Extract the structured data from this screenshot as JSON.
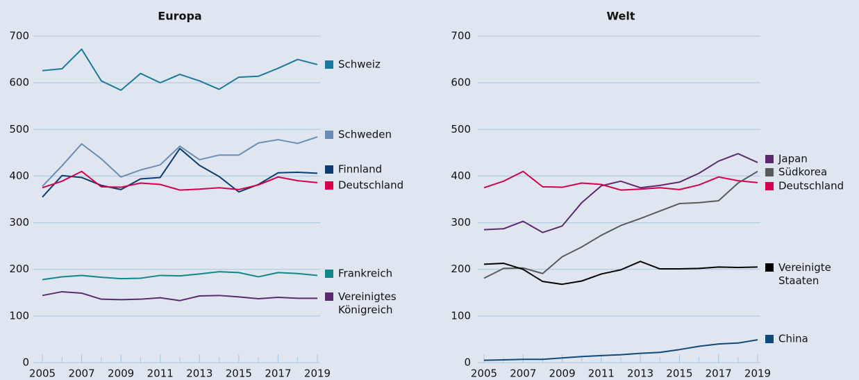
{
  "chart_data": [
    {
      "type": "line",
      "title": "Europa",
      "x": [
        2005,
        2006,
        2007,
        2008,
        2009,
        2010,
        2011,
        2012,
        2013,
        2014,
        2015,
        2016,
        2017,
        2018,
        2019
      ],
      "xlim": [
        2005,
        2019
      ],
      "xticks": [
        2005,
        2007,
        2009,
        2011,
        2013,
        2015,
        2017,
        2019
      ],
      "ylim": [
        0,
        700
      ],
      "yticks": [
        0,
        100,
        200,
        300,
        400,
        500,
        600,
        700
      ],
      "grid": true,
      "series": [
        {
          "name": "Schweiz",
          "color": "#1a7a9e",
          "values": [
            626,
            630,
            672,
            604,
            584,
            620,
            600,
            618,
            604,
            586,
            612,
            614,
            631,
            650,
            639
          ]
        },
        {
          "name": "Schweden",
          "color": "#6a8db5",
          "values": [
            378,
            422,
            469,
            437,
            398,
            413,
            424,
            464,
            435,
            445,
            445,
            471,
            478,
            470,
            484
          ]
        },
        {
          "name": "Finnland",
          "color": "#0c3d6e",
          "values": [
            355,
            401,
            397,
            380,
            371,
            394,
            397,
            459,
            423,
            399,
            366,
            382,
            407,
            408,
            406
          ]
        },
        {
          "name": "Deutschland",
          "color": "#d4004c",
          "values": [
            375,
            389,
            410,
            377,
            376,
            385,
            382,
            370,
            372,
            375,
            371,
            381,
            398,
            390,
            386
          ]
        },
        {
          "name": "Frankreich",
          "color": "#12888a",
          "values": [
            178,
            184,
            187,
            183,
            180,
            181,
            187,
            186,
            190,
            195,
            193,
            184,
            193,
            191,
            187
          ]
        },
        {
          "name": "Vereinigtes Königreich",
          "color": "#5a2a6e",
          "values": [
            144,
            152,
            149,
            136,
            135,
            136,
            139,
            133,
            143,
            144,
            141,
            137,
            140,
            138,
            138
          ]
        }
      ]
    },
    {
      "type": "line",
      "title": "Welt",
      "x": [
        2005,
        2006,
        2007,
        2008,
        2009,
        2010,
        2011,
        2012,
        2013,
        2014,
        2015,
        2016,
        2017,
        2018,
        2019
      ],
      "xlim": [
        2005,
        2019
      ],
      "xticks": [
        2005,
        2007,
        2009,
        2011,
        2013,
        2015,
        2017,
        2019
      ],
      "ylim": [
        0,
        700
      ],
      "yticks": [
        0,
        100,
        200,
        300,
        400,
        500,
        600,
        700
      ],
      "grid": true,
      "series": [
        {
          "name": "Japan",
          "color": "#5b2a6e",
          "values": [
            285,
            287,
            303,
            279,
            293,
            343,
            379,
            389,
            375,
            380,
            387,
            406,
            432,
            448,
            429
          ]
        },
        {
          "name": "Südkorea",
          "color": "#5a5a5a",
          "values": [
            181,
            202,
            203,
            191,
            227,
            248,
            273,
            294,
            309,
            325,
            341,
            343,
            347,
            385,
            410
          ]
        },
        {
          "name": "Deutschland",
          "color": "#d4004c",
          "values": [
            375,
            389,
            410,
            377,
            376,
            385,
            382,
            370,
            372,
            375,
            371,
            381,
            398,
            390,
            386
          ]
        },
        {
          "name": "Vereinigte Staaten",
          "color": "#000000",
          "values": [
            211,
            213,
            200,
            174,
            168,
            175,
            190,
            199,
            217,
            201,
            201,
            202,
            205,
            204,
            205
          ]
        },
        {
          "name": "China",
          "color": "#0d4a7a",
          "values": [
            5,
            6,
            7,
            7,
            10,
            13,
            15,
            17,
            20,
            22,
            28,
            35,
            40,
            42,
            49
          ]
        }
      ]
    }
  ]
}
